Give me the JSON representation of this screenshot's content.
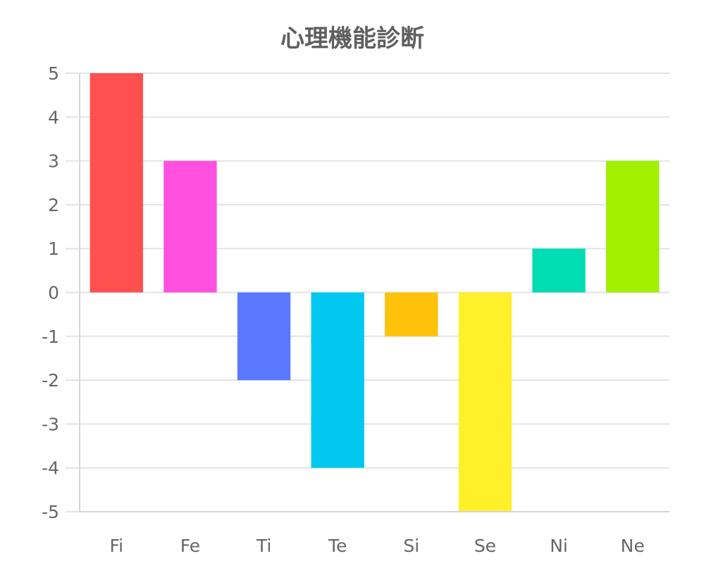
{
  "chart_data": {
    "type": "bar",
    "title": "心理機能診断",
    "xlabel": "",
    "ylabel": "",
    "categories": [
      "Fi",
      "Fe",
      "Ti",
      "Te",
      "Si",
      "Se",
      "Ni",
      "Ne"
    ],
    "values": [
      5,
      3,
      -2,
      -4,
      -1,
      -5,
      1,
      3
    ],
    "colors": [
      "#ff5050",
      "#ff50e0",
      "#5a78ff",
      "#00c8f0",
      "#ffc20a",
      "#fff02a",
      "#00dcb4",
      "#a0f000"
    ],
    "ylim": [
      -5,
      5
    ],
    "yticks": [
      "5",
      "4",
      "3",
      "2",
      "1",
      "0",
      "-1",
      "-2",
      "-3",
      "-4",
      "-5"
    ],
    "grid": true,
    "legend": "none"
  }
}
